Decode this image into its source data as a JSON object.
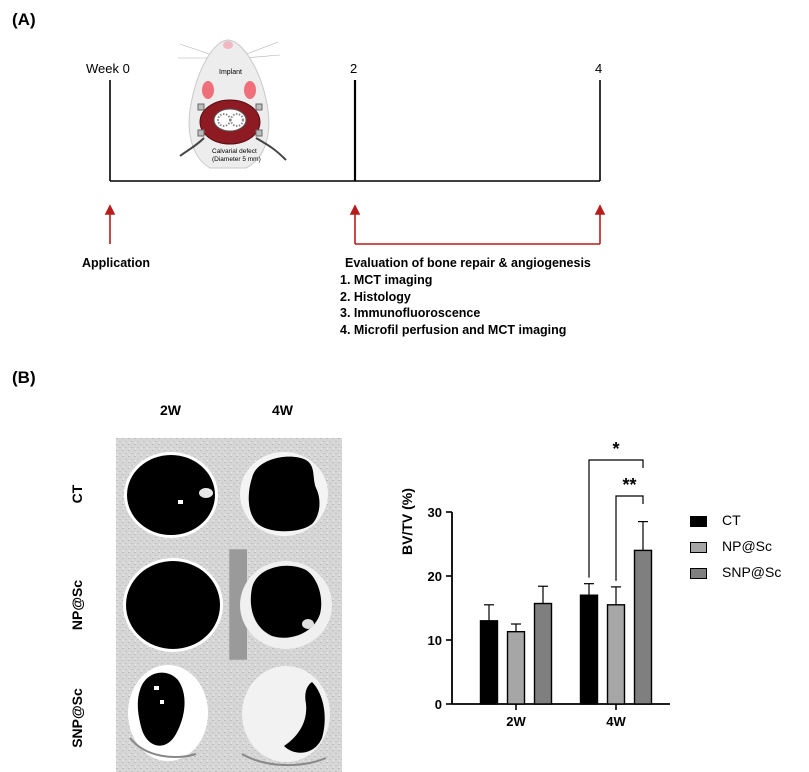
{
  "panel_a": {
    "label": "(A)",
    "timeline": {
      "ticks": [
        "Week 0",
        "2",
        "4"
      ],
      "application_label": "Application",
      "evaluation_title": "Evaluation of bone repair & angiogenesis",
      "evaluation_items": [
        "1.  MCT imaging",
        "2.  Histology",
        "3.  Immunofluoroscence",
        "4.  Microfil perfusion and MCT imaging"
      ]
    },
    "illustration": {
      "implant_label": "Implant",
      "defect_label": "Calvarial defect",
      "defect_sub": "(Diameter 5 mm)"
    }
  },
  "panel_b": {
    "label": "(B)",
    "column_headers": [
      "2W",
      "4W"
    ],
    "row_headers": [
      "CT",
      "NP@Sc",
      "SNP@Sc"
    ]
  },
  "chart_data": {
    "type": "bar",
    "ylabel": "BV/TV (%)",
    "xlabel": "",
    "ylim": [
      0,
      30
    ],
    "yticks": [
      "0",
      "10",
      "20",
      "30"
    ],
    "categories": [
      "2W",
      "4W"
    ],
    "series": [
      {
        "name": "CT",
        "values": [
          13.0,
          17.0
        ],
        "errors": [
          2.5,
          1.8
        ],
        "color": "#000000"
      },
      {
        "name": "NP@Sc",
        "values": [
          11.3,
          15.5
        ],
        "errors": [
          1.2,
          2.8
        ],
        "color": "#a6a6a6"
      },
      {
        "name": "SNP@Sc",
        "values": [
          15.7,
          24.0
        ],
        "errors": [
          2.7,
          4.5
        ],
        "color": "#7f7f7f"
      }
    ],
    "significance": [
      {
        "label": "*",
        "compare": [
          "CT",
          "SNP@Sc"
        ],
        "category": "4W"
      },
      {
        "label": "**",
        "compare": [
          "NP@Sc",
          "SNP@Sc"
        ],
        "category": "4W"
      }
    ],
    "legend_position": "right"
  }
}
